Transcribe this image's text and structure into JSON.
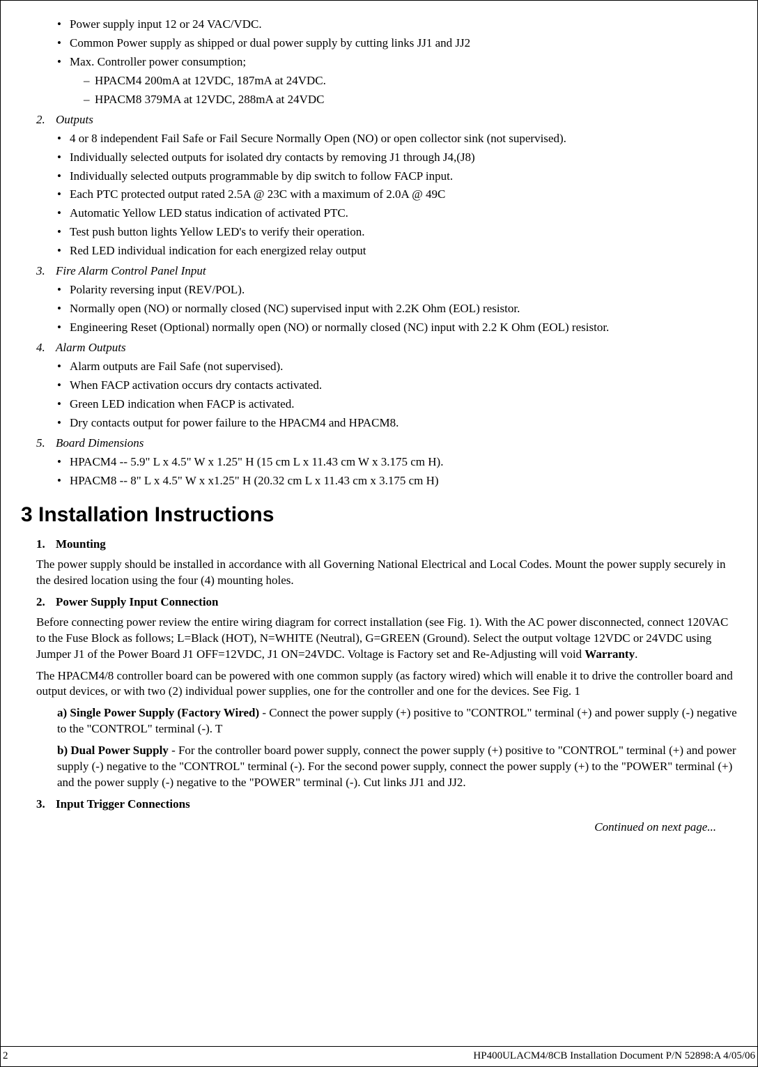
{
  "spec": {
    "intro_bullets": [
      "Power supply input 12 or 24 VAC/VDC.",
      "Common Power supply as shipped or dual power supply by cutting links JJ1 and JJ2",
      "Max. Controller power consumption;"
    ],
    "intro_dashes": [
      "HPACM4 200mA at 12VDC, 187mA at 24VDC.",
      "HPACM8 379MA at 12VDC, 288mA at 24VDC"
    ],
    "items": [
      {
        "num": "2.",
        "title": "Outputs",
        "bullets": [
          "4 or 8 independent Fail Safe or Fail Secure Normally Open (NO) or open collector sink (not supervised).",
          "Individually selected outputs for isolated dry contacts by removing J1 through J4,(J8)",
          "Individually selected outputs programmable by dip switch to follow FACP input.",
          "Each PTC protected output rated 2.5A @ 23C with a maximum of 2.0A @ 49C",
          "Automatic Yellow LED status indication of activated PTC.",
          "Test push button lights Yellow LED's to verify their operation.",
          "Red LED individual indication for each energized relay output"
        ]
      },
      {
        "num": "3.",
        "title": "Fire Alarm Control Panel Input",
        "bullets": [
          "Polarity reversing input (REV/POL).",
          "Normally open (NO) or normally closed (NC) supervised input with 2.2K Ohm (EOL) resistor.",
          "Engineering Reset (Optional) normally open (NO) or normally closed (NC) input with 2.2 K Ohm (EOL) resistor."
        ]
      },
      {
        "num": "4.",
        "title": "Alarm Outputs",
        "bullets": [
          "Alarm outputs are Fail Safe (not supervised).",
          "When FACP activation occurs dry contacts activated.",
          "Green LED indication when FACP is activated.",
          "Dry contacts output for power failure to the HPACM4 and HPACM8."
        ]
      },
      {
        "num": "5.",
        "title": "Board Dimensions",
        "bullets": [
          "HPACM4 --  5.9\" L  x  4.5\" W  x  1.25\" H  (15 cm L  x  11.43 cm W  x  3.175 cm H).",
          "HPACM8 --  8\"  L  x  4.5\" W  x  x1.25\" H  (20.32 cm L  x  11.43 cm  x  3.175 cm H)"
        ]
      }
    ]
  },
  "section3": {
    "heading": "3  Installation Instructions",
    "step1": {
      "num": "1.",
      "title": "Mounting"
    },
    "p1": "The power supply should be installed in accordance with all Governing National Electrical and Local Codes.  Mount the power supply securely in the desired location using the four (4) mounting holes.",
    "step2": {
      "num": "2.",
      "title": "Power Supply Input Connection"
    },
    "p2a": "Before connecting power review the entire wiring diagram for correct installation (see Fig. 1).  With the AC power disconnected, connect 120VAC to the Fuse Block as follows; L=Black (HOT), N=WHITE (Neutral), G=GREEN (Ground).   Select the output voltage 12VDC or 24VDC using Jumper J1 of the Power Board J1 OFF=12VDC, J1 ON=24VDC. Voltage is Factory set and Re-Adjusting will void ",
    "p2a_bold": "Warranty",
    "p2a_tail": ".",
    "p2b": "The HPACM4/8 controller board can be powered with one common supply (as factory wired) which will enable it to drive the controller board and output devices, or with two (2) individual power supplies, one for the controller and one for the devices.  See Fig. 1",
    "sub_a_label": "a)  Single Power Supply (Factory Wired)",
    "sub_a_text": " - Connect the power supply (+) positive to \"CONTROL\" terminal (+) and power supply (-) negative to the \"CONTROL\" terminal (-).  T",
    "sub_b_label": "b)   Dual Power Supply",
    "sub_b_text": " - For the controller board power supply, connect the power supply (+) positive to \"CONTROL\" terminal (+) and power supply (-) negative to the \"CONTROL\" terminal (-).  For the second power supply, connect the power supply (+) to the \"POWER\" terminal (+) and the power supply (-) negative to the \"POWER\" terminal (-).  Cut links JJ1 and JJ2.",
    "step3": {
      "num": "3.",
      "title": "Input Trigger Connections"
    },
    "continued": "Continued on next page..."
  },
  "footer": {
    "page": "2",
    "doc": "HP400ULACM4/8CB Installation Document  P/N 52898:A  4/05/06"
  }
}
